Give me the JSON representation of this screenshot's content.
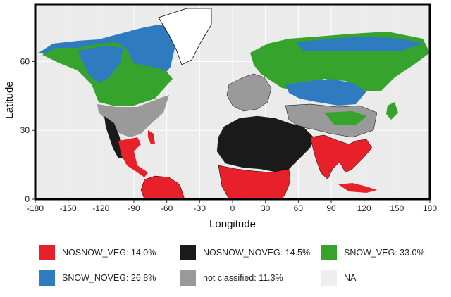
{
  "map": {
    "x_label": "Longitude",
    "y_label": "Latitude",
    "x_ticks": [
      "-180",
      "-150",
      "-120",
      "-90",
      "-60",
      "-30",
      "0",
      "30",
      "60",
      "90",
      "120",
      "150",
      "180"
    ],
    "y_ticks": [
      "0",
      "30",
      "60"
    ],
    "x_range": [
      -180,
      180
    ],
    "y_range": [
      0,
      85
    ],
    "background_color": "#ebebeb",
    "border_color": "#000000"
  },
  "legend": {
    "items": [
      {
        "label": "NOSNOW_VEG: 14.0%",
        "color": "#e8202a"
      },
      {
        "label": "NOSNOW_NOVEG: 14.5%",
        "color": "#1a1a1a"
      },
      {
        "label": "SNOW_VEG: 33.0%",
        "color": "#36a32c"
      },
      {
        "label": "SNOW_NOVEG: 26.8%",
        "color": "#2e7cbf"
      },
      {
        "label": "not classified: 11.3%",
        "color": "#9a9a9a"
      },
      {
        "label": "NA",
        "color": "#eeeeee"
      }
    ]
  }
}
